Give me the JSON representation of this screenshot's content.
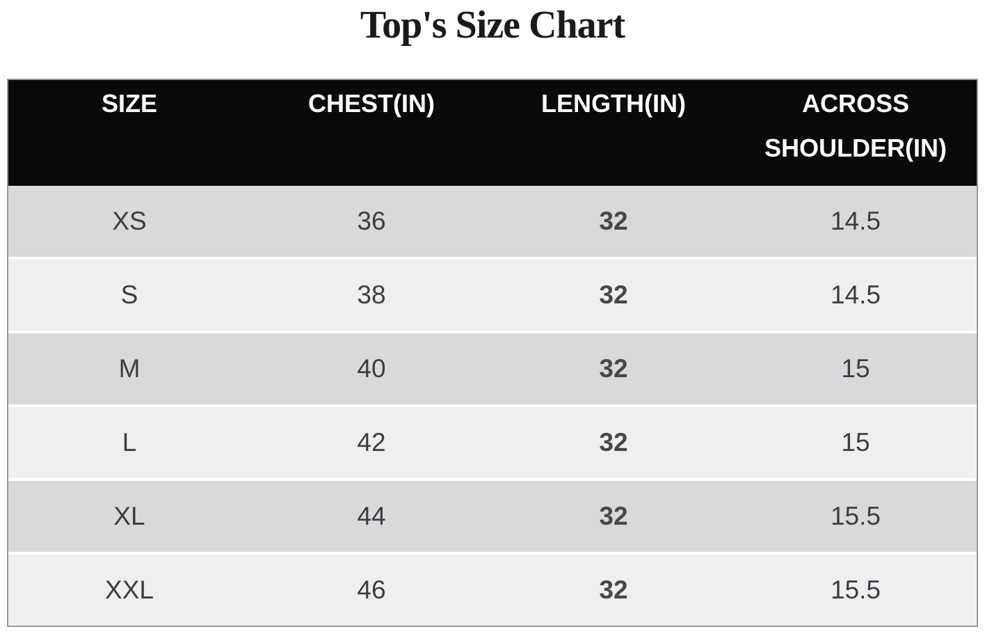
{
  "title": "Top's Size Chart",
  "table": {
    "columns": [
      "SIZE",
      "CHEST(IN)",
      "LENGTH(IN)",
      "ACROSS SHOULDER(IN)"
    ],
    "rows": [
      {
        "size": "XS",
        "chest": "36",
        "length": "32",
        "shoulder": "14.5"
      },
      {
        "size": "S",
        "chest": "38",
        "length": "32",
        "shoulder": "14.5"
      },
      {
        "size": "M",
        "chest": "40",
        "length": "32",
        "shoulder": "15"
      },
      {
        "size": "L",
        "chest": "42",
        "length": "32",
        "shoulder": "15"
      },
      {
        "size": "XL",
        "chest": "44",
        "length": "32",
        "shoulder": "15.5"
      },
      {
        "size": "XXL",
        "chest": "46",
        "length": "32",
        "shoulder": "15.5"
      }
    ]
  },
  "chart_data": {
    "type": "table",
    "title": "Top's Size Chart",
    "columns": [
      "SIZE",
      "CHEST(IN)",
      "LENGTH(IN)",
      "ACROSS SHOULDER(IN)"
    ],
    "rows": [
      [
        "XS",
        36,
        32,
        14.5
      ],
      [
        "S",
        38,
        32,
        14.5
      ],
      [
        "M",
        40,
        32,
        15
      ],
      [
        "L",
        42,
        32,
        15
      ],
      [
        "XL",
        44,
        32,
        15.5
      ],
      [
        "XXL",
        46,
        32,
        15.5
      ]
    ],
    "units": "inches",
    "layout": "header row black, data rows alternating gray stripes, all cells center-aligned"
  },
  "theme": {
    "header_bg": "#0a0a0a",
    "header_text": "#ffffff",
    "row_odd": "#d9d9dc",
    "row_even": "#efeff1",
    "border": "#999999",
    "text": "#3d3d40",
    "title_color": "#1a1a1a"
  }
}
